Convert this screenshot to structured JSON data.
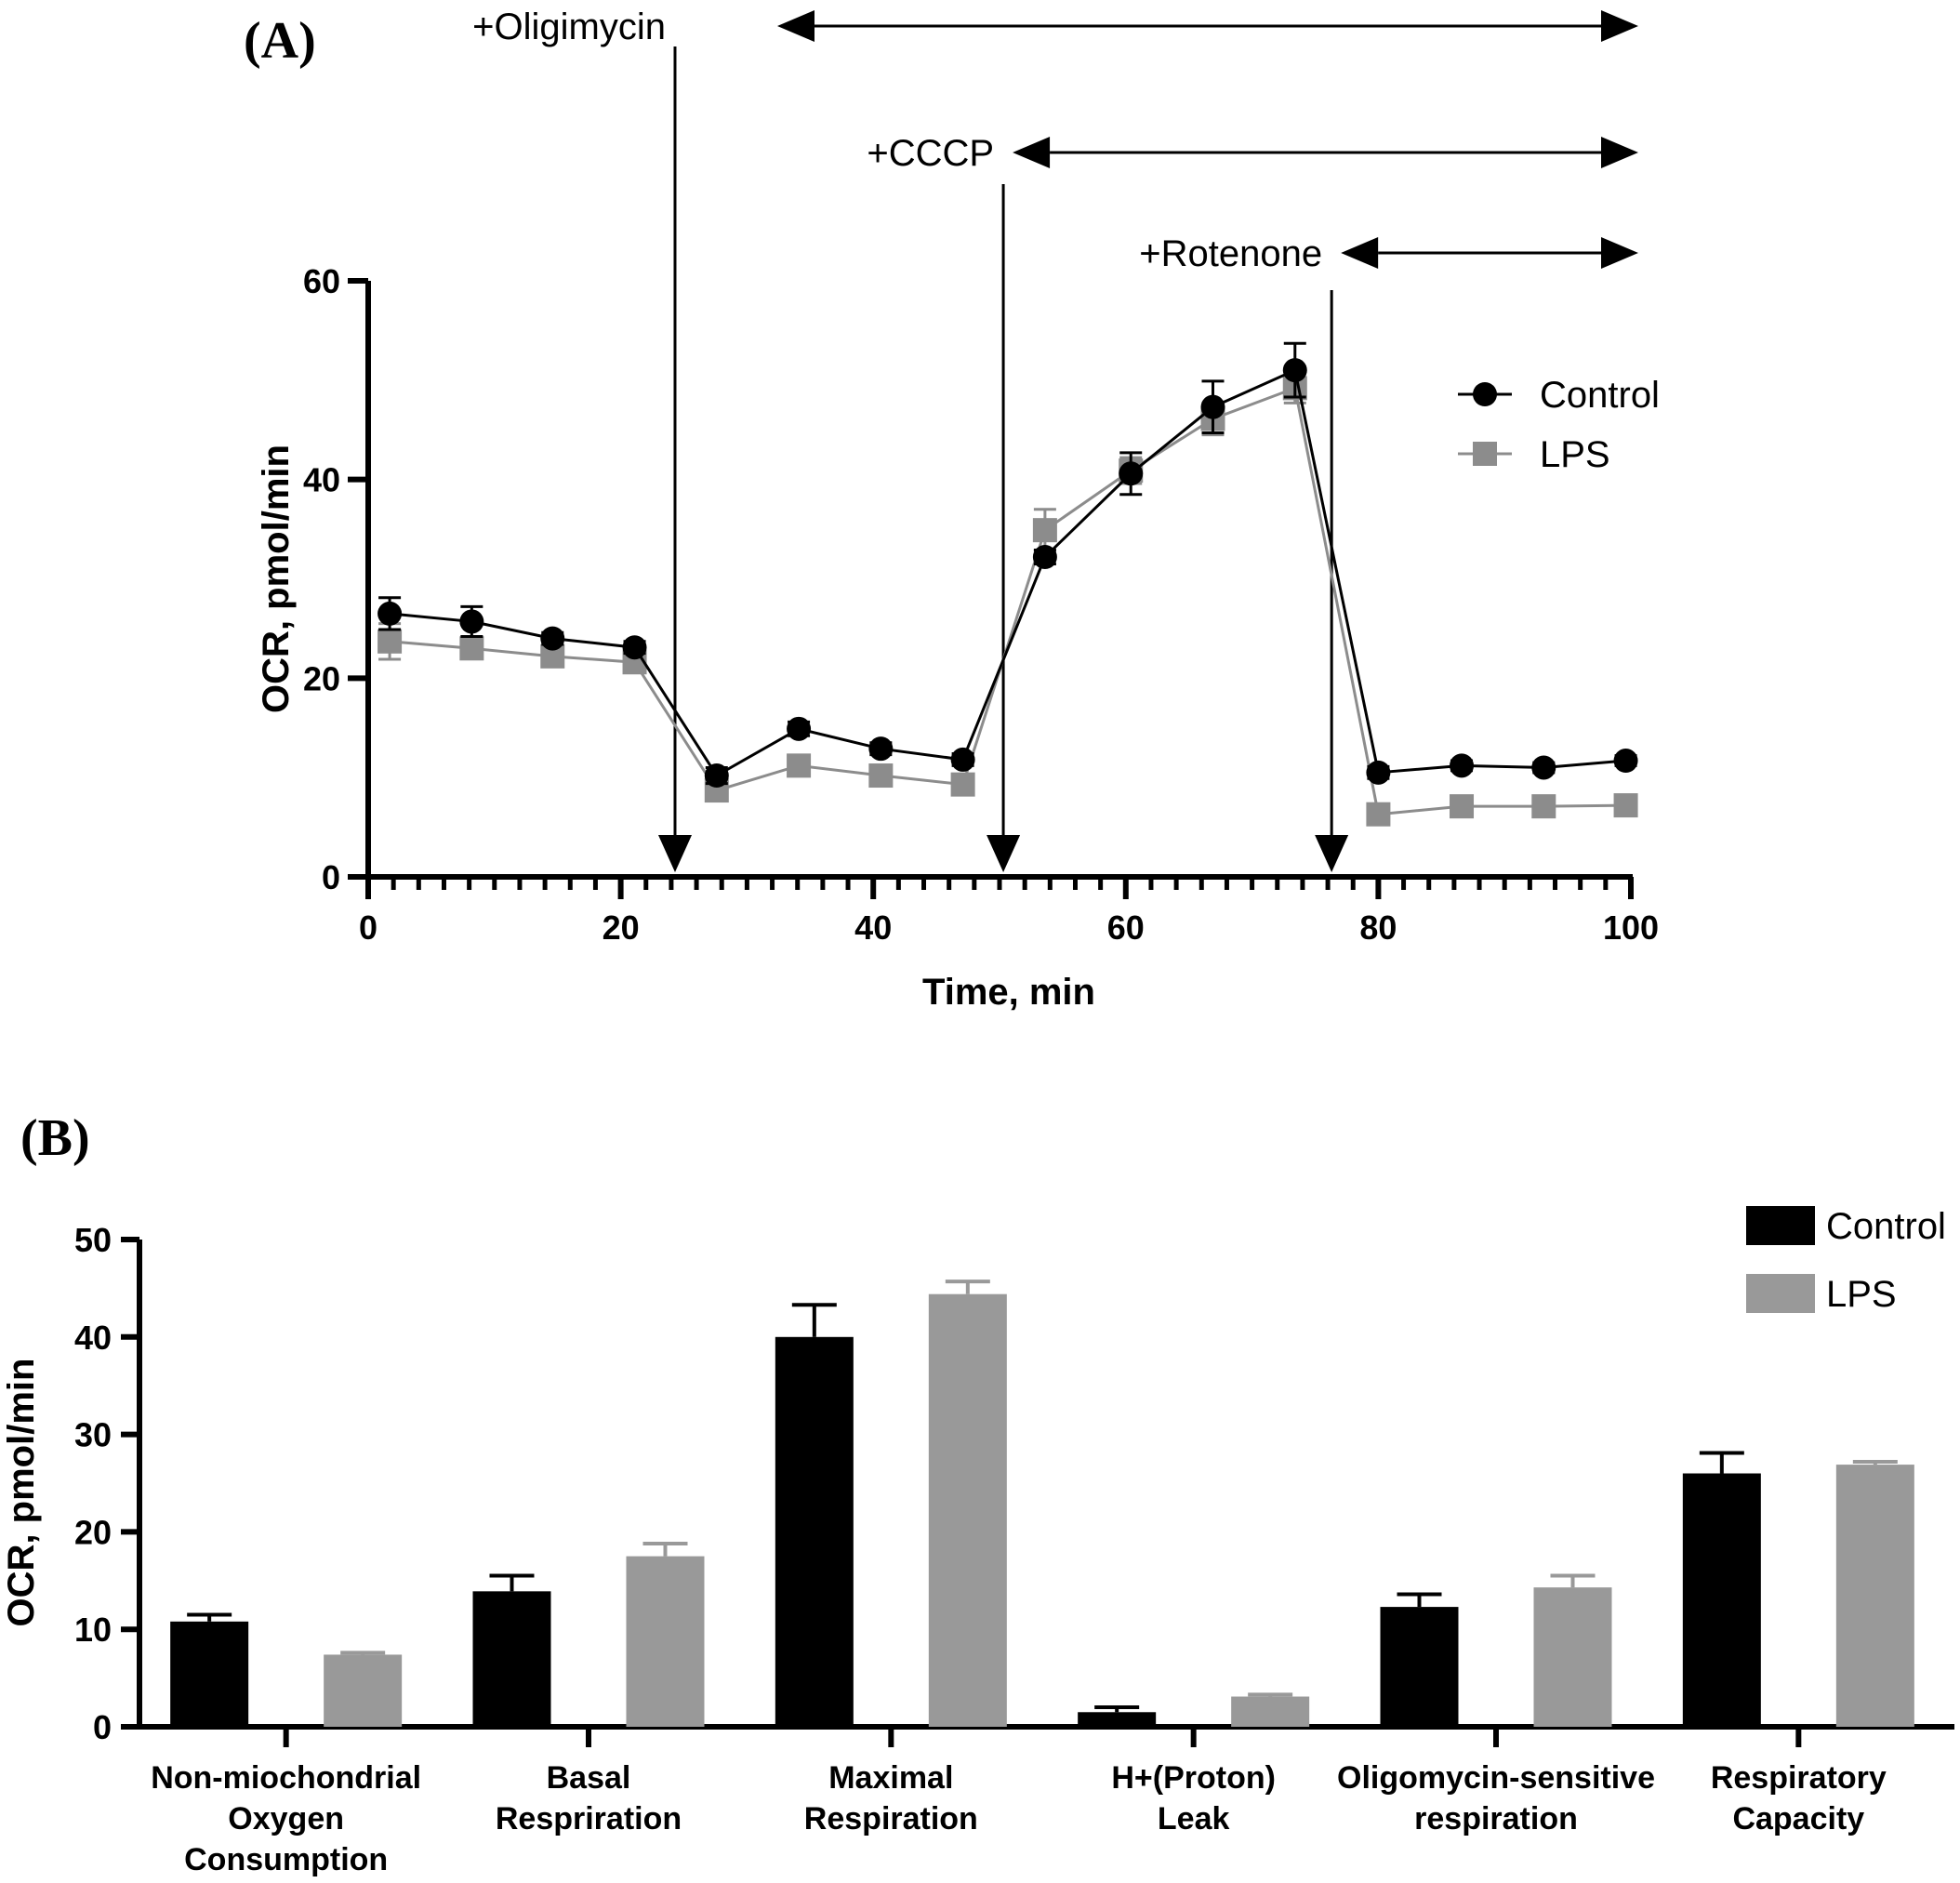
{
  "chart_data": [
    {
      "panel": "(A)",
      "type": "line",
      "xlabel": "Time, min",
      "ylabel": "OCR, pmol/min",
      "xlim": [
        0,
        100
      ],
      "ylim": [
        0,
        60
      ],
      "xticks": [
        0,
        20,
        40,
        60,
        80,
        100
      ],
      "yticks": [
        0,
        20,
        40,
        60
      ],
      "x": [
        1.7,
        8.2,
        14.6,
        21.1,
        27.6,
        34.1,
        40.6,
        47.1,
        53.6,
        60.4,
        66.9,
        73.4,
        80.0,
        86.6,
        93.1,
        99.6
      ],
      "series": [
        {
          "name": "Control",
          "color": "#000000",
          "marker": "circle",
          "values": [
            26.5,
            25.7,
            24.0,
            23.1,
            10.2,
            14.9,
            12.9,
            11.8,
            32.2,
            40.6,
            47.3,
            51.0,
            10.5,
            11.2,
            11.0,
            11.7
          ],
          "errors": [
            1.6,
            1.5,
            0.6,
            0.6,
            0.8,
            0.7,
            0.6,
            0.6,
            0.7,
            2.1,
            2.6,
            2.7,
            0.6,
            0.5,
            0.5,
            0.5
          ]
        },
        {
          "name": "LPS",
          "color": "#8c8c8c",
          "marker": "square",
          "values": [
            23.7,
            23.0,
            22.2,
            21.6,
            8.7,
            11.2,
            10.2,
            9.3,
            34.9,
            40.9,
            46.1,
            49.2,
            6.3,
            7.1,
            7.1,
            7.2
          ],
          "errors": [
            1.8,
            0.9,
            0.8,
            0.6,
            0.5,
            0.5,
            0.5,
            0.5,
            2.1,
            1.3,
            1.6,
            1.5,
            0.4,
            0.4,
            0.4,
            0.4
          ]
        }
      ],
      "annotations": [
        {
          "label": "+Oligimycin",
          "x": 24.3
        },
        {
          "label": "+CCCP",
          "x": 50.3
        },
        {
          "label": "+Rotenone",
          "x": 76.3
        }
      ],
      "legend": "top-right"
    },
    {
      "panel": "(B)",
      "type": "bar",
      "ylabel": "OCR, pmol/min",
      "ylim": [
        0,
        50
      ],
      "yticks": [
        0,
        10,
        20,
        30,
        40,
        50
      ],
      "categories": [
        [
          "Non-miochondrial",
          "Oxygen",
          "Consumption"
        ],
        [
          "Basal",
          "Respriration"
        ],
        [
          "Maximal",
          "Respiration"
        ],
        [
          "H+(Proton)",
          "Leak"
        ],
        [
          "Oligomycin-sensitive",
          "respiration"
        ],
        [
          "Respiratory",
          "Capacity"
        ]
      ],
      "series": [
        {
          "name": "Control",
          "color": "#000000",
          "values": [
            10.8,
            13.9,
            40.0,
            1.5,
            12.3,
            26.0
          ],
          "errors": [
            0.7,
            1.6,
            3.3,
            0.5,
            1.3,
            2.1
          ]
        },
        {
          "name": "LPS",
          "color": "#999999",
          "values": [
            7.4,
            17.5,
            44.4,
            3.1,
            14.3,
            26.9
          ],
          "errors": [
            0.2,
            1.3,
            1.3,
            0.2,
            1.2,
            0.3
          ]
        }
      ],
      "legend": "top-right"
    }
  ]
}
